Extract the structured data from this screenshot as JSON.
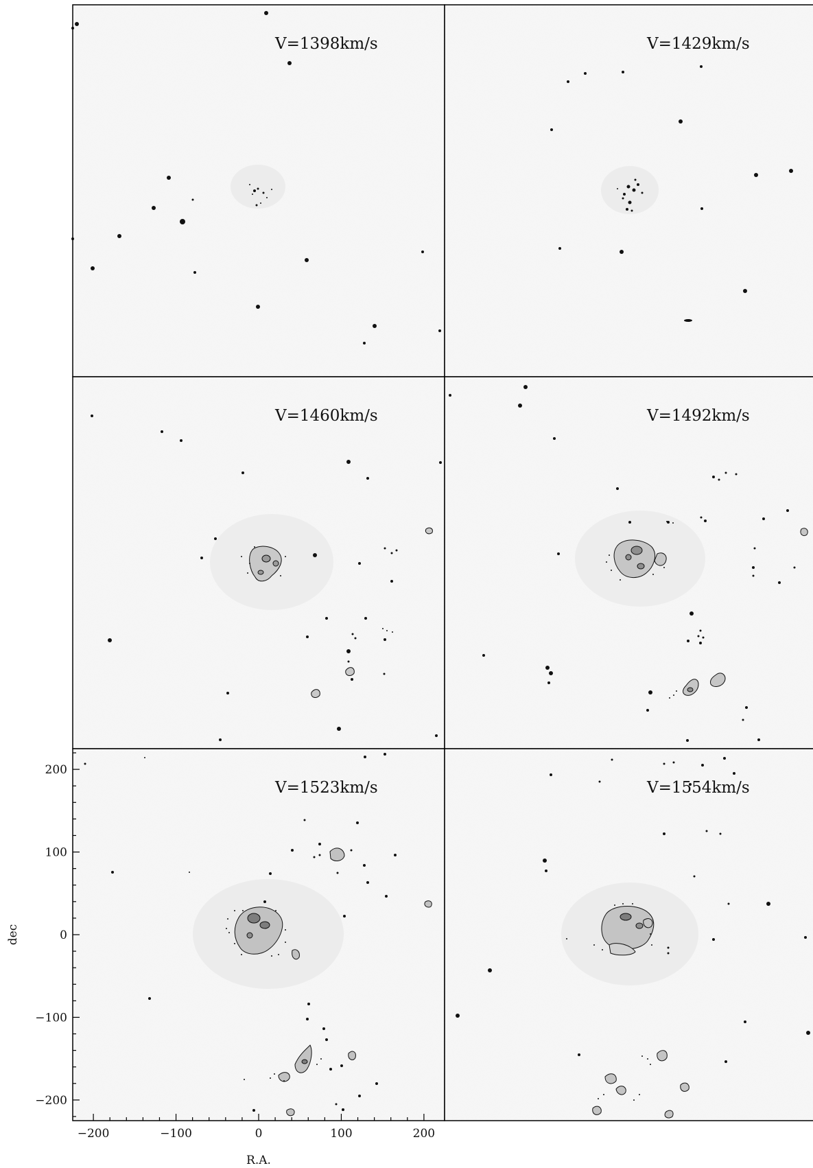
{
  "figure": {
    "panel_grid": "3 rows x 2 columns (right column truncated at image edge)",
    "colormap": "inverted grayscale with black contours",
    "panels": [
      {
        "velocity_label": "V=1398km/s"
      },
      {
        "velocity_label": "V=1429km/s"
      },
      {
        "velocity_label": "V=1460km/s"
      },
      {
        "velocity_label": "V=1492km/s"
      },
      {
        "velocity_label": "V=1523km/s"
      },
      {
        "velocity_label": "V=1554km/s"
      }
    ],
    "axes": {
      "xlabel": "R.A.",
      "ylabel": "dec",
      "x_ticks": [
        "−200",
        "−100",
        "0",
        "100",
        "200"
      ],
      "y_ticks": [
        "200",
        "100",
        "0",
        "−100",
        "−200"
      ],
      "x_tick_values": [
        -200,
        -100,
        0,
        100,
        200
      ],
      "y_tick_values": [
        200,
        100,
        0,
        -100,
        -200
      ],
      "xlim": [
        -225,
        225
      ],
      "ylim": [
        -225,
        225
      ]
    }
  }
}
